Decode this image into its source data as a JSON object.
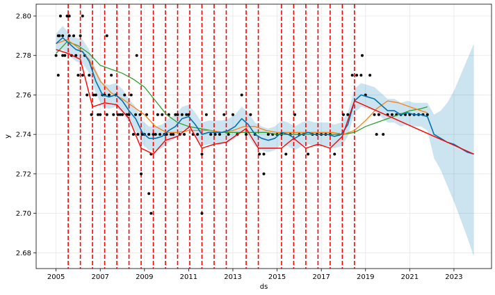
{
  "chart_data": {
    "type": "line",
    "xlabel": "ds",
    "ylabel": "y",
    "xlim": [
      2004.1,
      2024.7
    ],
    "ylim": [
      2.672,
      2.806
    ],
    "x_ticks": [
      {
        "value": 2005,
        "label": "2005"
      },
      {
        "value": 2007,
        "label": "2007"
      },
      {
        "value": 2009,
        "label": "2009"
      },
      {
        "value": 2011,
        "label": "2011"
      },
      {
        "value": 2013,
        "label": "2013"
      },
      {
        "value": 2015,
        "label": "2015"
      },
      {
        "value": 2017,
        "label": "2017"
      },
      {
        "value": 2019,
        "label": "2019"
      },
      {
        "value": 2021,
        "label": "2021"
      },
      {
        "value": 2023,
        "label": "2023"
      }
    ],
    "y_ticks": [
      {
        "value": 2.68,
        "label": "2.68"
      },
      {
        "value": 2.7,
        "label": "2.70"
      },
      {
        "value": 2.72,
        "label": "2.72"
      },
      {
        "value": 2.74,
        "label": "2.74"
      },
      {
        "value": 2.76,
        "label": "2.76"
      },
      {
        "value": 2.78,
        "label": "2.78"
      },
      {
        "value": 2.8,
        "label": "2.80"
      }
    ],
    "grid": true,
    "colors": {
      "observed": "#000000",
      "forecast": "#0072B2",
      "uncertainty": "#0072B2",
      "trend": "#ff0000",
      "changepoints": "#ff0000",
      "green_series": "#2ca02c",
      "orange_series": "#ff7f0e"
    },
    "changepoints": [
      2005.55,
      2006.1,
      2006.65,
      2007.2,
      2007.75,
      2008.3,
      2008.85,
      2009.4,
      2009.95,
      2010.5,
      2011.05,
      2011.6,
      2012.15,
      2012.7,
      2013.6,
      2014.15,
      2015.2,
      2015.75,
      2016.3,
      2016.85,
      2017.4,
      2017.95,
      2018.5
    ],
    "trend": {
      "x": [
        2005.0,
        2005.55,
        2006.1,
        2006.65,
        2007.2,
        2007.75,
        2008.3,
        2008.85,
        2009.4,
        2009.95,
        2010.5,
        2011.05,
        2011.6,
        2012.15,
        2012.7,
        2013.6,
        2014.15,
        2015.2,
        2015.75,
        2016.3,
        2016.85,
        2017.4,
        2017.95,
        2018.5,
        2023.9
      ],
      "y": [
        2.783,
        2.781,
        2.778,
        2.754,
        2.756,
        2.755,
        2.748,
        2.733,
        2.73,
        2.737,
        2.739,
        2.744,
        2.733,
        2.735,
        2.736,
        2.743,
        2.733,
        2.733,
        2.738,
        2.733,
        2.735,
        2.733,
        2.739,
        2.757,
        2.73
      ]
    },
    "forecast": {
      "x": [
        2005.0,
        2005.3,
        2005.6,
        2005.9,
        2006.2,
        2006.5,
        2006.8,
        2007.1,
        2007.4,
        2007.7,
        2008.0,
        2008.3,
        2008.6,
        2008.9,
        2009.2,
        2009.5,
        2009.8,
        2010.1,
        2010.4,
        2010.7,
        2011.0,
        2011.3,
        2011.6,
        2011.9,
        2012.2,
        2012.5,
        2012.8,
        2013.1,
        2013.4,
        2013.7,
        2014.0,
        2014.3,
        2014.6,
        2014.9,
        2015.2,
        2015.5,
        2015.8,
        2016.1,
        2016.4,
        2016.7,
        2017.0,
        2017.3,
        2017.6,
        2017.9,
        2018.2,
        2018.5,
        2018.8,
        2019.1,
        2019.4,
        2019.7,
        2020.0,
        2020.3,
        2020.6,
        2020.9,
        2021.2,
        2021.5,
        2021.8,
        2022.1,
        2022.4,
        2022.7,
        2023.0,
        2023.3,
        2023.6,
        2023.9
      ],
      "y": [
        2.786,
        2.789,
        2.786,
        2.783,
        2.782,
        2.777,
        2.767,
        2.76,
        2.759,
        2.76,
        2.757,
        2.752,
        2.748,
        2.741,
        2.738,
        2.738,
        2.739,
        2.742,
        2.744,
        2.748,
        2.749,
        2.745,
        2.74,
        2.741,
        2.741,
        2.741,
        2.742,
        2.744,
        2.748,
        2.745,
        2.74,
        2.738,
        2.737,
        2.738,
        2.741,
        2.74,
        2.738,
        2.74,
        2.741,
        2.74,
        2.74,
        2.74,
        2.739,
        2.74,
        2.745,
        2.757,
        2.76,
        2.759,
        2.758,
        2.755,
        2.752,
        2.752,
        2.75,
        2.751,
        2.75,
        2.75,
        2.749,
        2.74,
        2.738,
        2.736,
        2.735,
        2.733,
        2.731,
        2.73
      ]
    },
    "uncertainty_band": {
      "upper": [
        2.791,
        2.795,
        2.791,
        2.789,
        2.788,
        2.783,
        2.773,
        2.766,
        2.765,
        2.766,
        2.763,
        2.758,
        2.754,
        2.747,
        2.744,
        2.744,
        2.745,
        2.748,
        2.75,
        2.754,
        2.755,
        2.751,
        2.746,
        2.747,
        2.747,
        2.747,
        2.748,
        2.75,
        2.754,
        2.751,
        2.746,
        2.744,
        2.743,
        2.744,
        2.747,
        2.746,
        2.744,
        2.746,
        2.747,
        2.746,
        2.746,
        2.746,
        2.745,
        2.746,
        2.751,
        2.763,
        2.766,
        2.765,
        2.764,
        2.761,
        2.758,
        2.758,
        2.756,
        2.757,
        2.756,
        2.756,
        2.756,
        2.75,
        2.752,
        2.756,
        2.762,
        2.77,
        2.778,
        2.786
      ],
      "lower": [
        2.781,
        2.783,
        2.78,
        2.777,
        2.776,
        2.771,
        2.761,
        2.754,
        2.753,
        2.754,
        2.751,
        2.746,
        2.742,
        2.735,
        2.732,
        2.732,
        2.733,
        2.736,
        2.738,
        2.742,
        2.743,
        2.739,
        2.734,
        2.735,
        2.735,
        2.735,
        2.736,
        2.738,
        2.742,
        2.739,
        2.734,
        2.732,
        2.731,
        2.732,
        2.735,
        2.734,
        2.732,
        2.734,
        2.735,
        2.734,
        2.734,
        2.734,
        2.733,
        2.734,
        2.739,
        2.751,
        2.754,
        2.753,
        2.752,
        2.749,
        2.746,
        2.746,
        2.744,
        2.745,
        2.744,
        2.744,
        2.742,
        2.728,
        2.722,
        2.714,
        2.706,
        2.697,
        2.688,
        2.678
      ]
    },
    "green_series": {
      "x": [
        2005.0,
        2005.5,
        2006.0,
        2006.5,
        2007.0,
        2007.5,
        2008.0,
        2008.5,
        2009.0,
        2009.5,
        2010.0,
        2010.5,
        2011.0,
        2011.5,
        2012.0,
        2012.5,
        2013.0,
        2013.5,
        2014.0,
        2014.5,
        2015.0,
        2015.5,
        2016.0,
        2016.5,
        2017.0,
        2017.5,
        2018.0,
        2018.5,
        2019.0,
        2019.5,
        2020.0,
        2020.5,
        2021.0,
        2021.5,
        2021.8
      ],
      "y": [
        2.781,
        2.787,
        2.785,
        2.781,
        2.775,
        2.773,
        2.771,
        2.768,
        2.764,
        2.757,
        2.75,
        2.746,
        2.744,
        2.743,
        2.742,
        2.741,
        2.741,
        2.741,
        2.741,
        2.741,
        2.74,
        2.74,
        2.74,
        2.74,
        2.74,
        2.74,
        2.74,
        2.741,
        2.744,
        2.746,
        2.748,
        2.75,
        2.752,
        2.753,
        2.754
      ]
    },
    "orange_series": {
      "x": [
        2005.0,
        2005.5,
        2006.0,
        2006.5,
        2007.0,
        2007.5,
        2008.0,
        2008.5,
        2009.0,
        2009.5,
        2010.0,
        2010.5,
        2011.0,
        2011.5,
        2012.0,
        2012.5,
        2013.0,
        2013.5,
        2014.0,
        2014.5,
        2015.0,
        2015.5,
        2016.0,
        2016.5,
        2017.0,
        2017.5,
        2018.0,
        2018.5,
        2019.0,
        2019.5,
        2020.0,
        2020.5,
        2021.0,
        2021.5,
        2021.8
      ],
      "y": [
        2.786,
        2.788,
        2.784,
        2.778,
        2.767,
        2.761,
        2.758,
        2.754,
        2.75,
        2.744,
        2.741,
        2.741,
        2.742,
        2.742,
        2.742,
        2.741,
        2.742,
        2.744,
        2.744,
        2.742,
        2.741,
        2.741,
        2.741,
        2.741,
        2.741,
        2.741,
        2.74,
        2.742,
        2.747,
        2.753,
        2.757,
        2.756,
        2.754,
        2.752,
        2.751
      ]
    },
    "observed_points": {
      "x": [
        2005.0,
        2005.1,
        2005.2,
        2005.3,
        2005.4,
        2005.5,
        2005.6,
        2005.7,
        2005.8,
        2005.1,
        2005.3,
        2005.9,
        2006.0,
        2006.1,
        2006.2,
        2006.3,
        2006.4,
        2006.5,
        2006.6,
        2006.7,
        2006.8,
        2006.9,
        2007.0,
        2007.1,
        2007.2,
        2007.3,
        2007.4,
        2007.5,
        2007.6,
        2007.7,
        2007.8,
        2007.9,
        2008.0,
        2008.1,
        2008.2,
        2008.3,
        2008.4,
        2008.5,
        2008.6,
        2008.7,
        2008.8,
        2008.9,
        2009.0,
        2009.1,
        2009.2,
        2009.3,
        2009.4,
        2009.5,
        2009.6,
        2009.7,
        2009.8,
        2009.9,
        2010.0,
        2010.1,
        2010.2,
        2010.3,
        2010.4,
        2010.5,
        2010.6,
        2010.7,
        2010.8,
        2010.9,
        2011.0,
        2011.2,
        2011.4,
        2011.6,
        2011.8,
        2012.0,
        2012.2,
        2012.4,
        2012.6,
        2012.8,
        2013.0,
        2013.2,
        2013.4,
        2013.6,
        2013.8,
        2014.0,
        2014.2,
        2014.4,
        2014.6,
        2014.8,
        2015.0,
        2015.2,
        2015.4,
        2015.6,
        2015.8,
        2016.0,
        2016.2,
        2016.4,
        2016.6,
        2016.8,
        2017.0,
        2017.2,
        2017.4,
        2017.6,
        2017.8,
        2018.0,
        2018.2,
        2018.4,
        2018.6,
        2018.8,
        2019.0,
        2019.2,
        2019.4,
        2019.6,
        2019.8,
        2020.0,
        2020.2,
        2020.4,
        2020.6,
        2020.8,
        2021.0,
        2021.2,
        2021.4,
        2021.6,
        2021.8,
        2005.15,
        2005.6,
        2006.2,
        2007.3,
        2008.65,
        2008.85,
        2009.2,
        2009.3,
        2011.6,
        2014.4,
        2018.85,
        2019.5
      ],
      "y": [
        2.78,
        2.79,
        2.8,
        2.79,
        2.78,
        2.8,
        2.79,
        2.78,
        2.79,
        2.77,
        2.78,
        2.78,
        2.77,
        2.79,
        2.77,
        2.78,
        2.76,
        2.77,
        2.75,
        2.76,
        2.76,
        2.75,
        2.75,
        2.76,
        2.76,
        2.75,
        2.76,
        2.77,
        2.75,
        2.76,
        2.75,
        2.75,
        2.75,
        2.76,
        2.75,
        2.75,
        2.76,
        2.74,
        2.75,
        2.74,
        2.75,
        2.74,
        2.74,
        2.75,
        2.74,
        2.73,
        2.74,
        2.74,
        2.75,
        2.74,
        2.75,
        2.74,
        2.74,
        2.75,
        2.74,
        2.74,
        2.75,
        2.75,
        2.74,
        2.75,
        2.74,
        2.75,
        2.75,
        2.74,
        2.74,
        2.73,
        2.75,
        2.74,
        2.74,
        2.74,
        2.75,
        2.74,
        2.75,
        2.74,
        2.76,
        2.74,
        2.75,
        2.74,
        2.73,
        2.73,
        2.74,
        2.74,
        2.74,
        2.74,
        2.73,
        2.74,
        2.75,
        2.74,
        2.74,
        2.73,
        2.74,
        2.74,
        2.74,
        2.74,
        2.74,
        2.73,
        2.74,
        2.75,
        2.75,
        2.77,
        2.77,
        2.77,
        2.76,
        2.77,
        2.75,
        2.75,
        2.74,
        2.75,
        2.75,
        2.75,
        2.75,
        2.75,
        2.75,
        2.75,
        2.75,
        2.75,
        2.75,
        2.79,
        2.8,
        2.8,
        2.79,
        2.78,
        2.72,
        2.71,
        2.7,
        2.7,
        2.72,
        2.78,
        2.74
      ]
    }
  }
}
